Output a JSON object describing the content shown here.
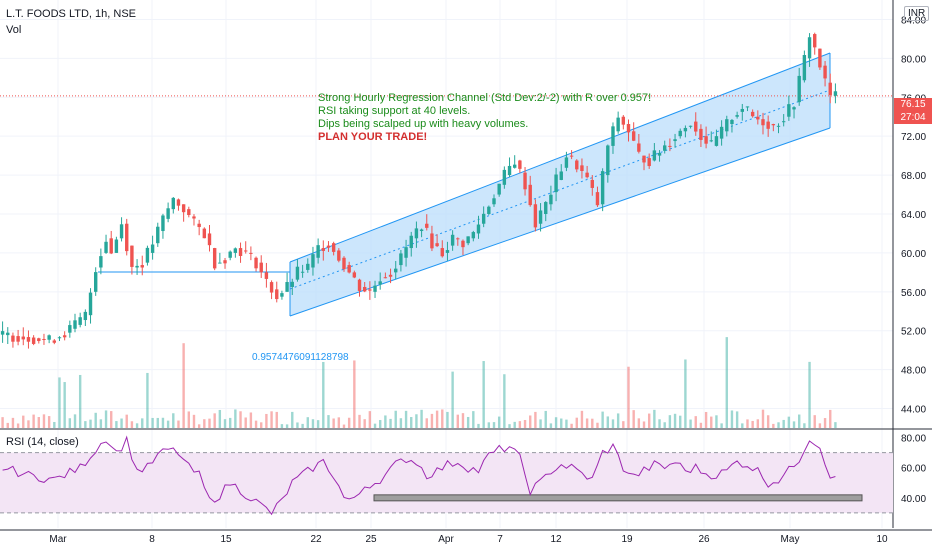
{
  "header": {
    "symbol": "L.T. FOODS LTD, 1h, NSE",
    "volume_label": "Vol",
    "currency": "INR"
  },
  "price_axis": {
    "ticks": [
      "84.00",
      "80.00",
      "76.00",
      "72.00",
      "68.00",
      "64.00",
      "60.00",
      "56.00",
      "52.00",
      "48.00",
      "44.00"
    ]
  },
  "rsi_axis": {
    "ticks": [
      "80.00",
      "60.00",
      "40.00"
    ]
  },
  "time_axis": {
    "ticks": [
      "Mar",
      "8",
      "15",
      "22",
      "25",
      "Apr",
      "7",
      "12",
      "19",
      "26",
      "May",
      "10"
    ]
  },
  "last_price": {
    "value": "76.15",
    "countdown": "27:04"
  },
  "annotation": {
    "line1": "Strong Hourly Regression Channel (Std Dev:2/-2) with R over 0.957!",
    "line2": "RSI taking support at 40 levels.",
    "line3": "Dips being scalped up with heavy volumes.",
    "line4": "PLAN YOUR TRADE!"
  },
  "regression_label": "0.9574476091128798",
  "rsi_panel": {
    "title": "RSI (14, close)"
  },
  "colors": {
    "up": "#26a69a",
    "down": "#ef5350",
    "channel_fill": "#bbdefb",
    "channel_line": "#2196f3",
    "rsi_line": "#9c27b0",
    "rsi_band": "#f3e5f5",
    "price_line": "#ef5350",
    "annotation_green": "#1b8c1b",
    "annotation_red": "#d32f2f"
  },
  "chart_data": {
    "type": "candlestick",
    "price_ylim": [
      42,
      86
    ],
    "rsi_ylim": [
      20,
      85
    ],
    "rsi_levels": [
      70,
      30
    ],
    "rsi_support": 40,
    "price_path": [
      [
        0,
        51.6
      ],
      [
        6,
        51.3
      ],
      [
        10,
        51.0
      ],
      [
        13,
        51.8
      ],
      [
        15,
        52.6
      ],
      [
        17,
        53.6
      ],
      [
        18,
        56.0
      ],
      [
        19,
        58.5
      ],
      [
        21,
        61.5
      ],
      [
        22,
        60.0
      ],
      [
        24,
        63.0
      ],
      [
        26,
        58.5
      ],
      [
        28,
        59.0
      ],
      [
        30,
        61.0
      ],
      [
        32,
        63.5
      ],
      [
        34,
        65.5
      ],
      [
        36,
        64.5
      ],
      [
        38,
        63.0
      ],
      [
        40,
        62.0
      ],
      [
        42,
        59.0
      ],
      [
        44,
        59.5
      ],
      [
        46,
        60.5
      ],
      [
        48,
        60.0
      ],
      [
        50,
        59.0
      ],
      [
        52,
        57.0
      ],
      [
        54,
        55.5
      ],
      [
        56,
        56.5
      ],
      [
        58,
        58.0
      ],
      [
        60,
        58.5
      ],
      [
        62,
        60.5
      ],
      [
        64,
        61.0
      ],
      [
        66,
        59.5
      ],
      [
        68,
        58.0
      ],
      [
        70,
        56.5
      ],
      [
        72,
        56.0
      ],
      [
        74,
        57.5
      ],
      [
        76,
        58.0
      ],
      [
        78,
        59.5
      ],
      [
        80,
        61.5
      ],
      [
        82,
        63.0
      ],
      [
        84,
        61.0
      ],
      [
        86,
        60.0
      ],
      [
        88,
        61.5
      ],
      [
        90,
        61.0
      ],
      [
        92,
        62.0
      ],
      [
        94,
        64.0
      ],
      [
        96,
        66.0
      ],
      [
        98,
        68.0
      ],
      [
        100,
        69.5
      ],
      [
        102,
        67.0
      ],
      [
        104,
        63.0
      ],
      [
        106,
        65.0
      ],
      [
        108,
        67.5
      ],
      [
        110,
        70.0
      ],
      [
        112,
        69.0
      ],
      [
        114,
        67.5
      ],
      [
        116,
        65.0
      ],
      [
        118,
        71.0
      ],
      [
        120,
        74.0
      ],
      [
        122,
        72.5
      ],
      [
        124,
        70.0
      ],
      [
        126,
        69.5
      ],
      [
        128,
        70.5
      ],
      [
        130,
        71.5
      ],
      [
        132,
        72.5
      ],
      [
        134,
        73.5
      ],
      [
        136,
        72.0
      ],
      [
        138,
        71.0
      ],
      [
        140,
        72.5
      ],
      [
        142,
        74.0
      ],
      [
        144,
        75.0
      ],
      [
        146,
        74.0
      ],
      [
        148,
        73.5
      ],
      [
        150,
        73.0
      ],
      [
        152,
        74.0
      ],
      [
        154,
        75.5
      ],
      [
        156,
        80.0
      ],
      [
        157,
        82.5
      ],
      [
        158,
        81.0
      ],
      [
        160,
        77.5
      ],
      [
        161,
        76.15
      ]
    ],
    "rsi_path": [
      [
        0,
        60
      ],
      [
        5,
        55
      ],
      [
        10,
        52
      ],
      [
        15,
        60
      ],
      [
        18,
        72
      ],
      [
        20,
        80
      ],
      [
        22,
        70
      ],
      [
        24,
        78
      ],
      [
        26,
        58
      ],
      [
        28,
        60
      ],
      [
        30,
        68
      ],
      [
        32,
        72
      ],
      [
        34,
        70
      ],
      [
        36,
        60
      ],
      [
        38,
        55
      ],
      [
        40,
        38
      ],
      [
        42,
        42
      ],
      [
        44,
        50
      ],
      [
        46,
        45
      ],
      [
        48,
        40
      ],
      [
        50,
        35
      ],
      [
        52,
        30
      ],
      [
        54,
        38
      ],
      [
        56,
        50
      ],
      [
        58,
        55
      ],
      [
        60,
        60
      ],
      [
        62,
        64
      ],
      [
        64,
        55
      ],
      [
        66,
        40
      ],
      [
        68,
        38
      ],
      [
        70,
        48
      ],
      [
        72,
        50
      ],
      [
        74,
        55
      ],
      [
        76,
        62
      ],
      [
        78,
        66
      ],
      [
        80,
        64
      ],
      [
        82,
        55
      ],
      [
        84,
        58
      ],
      [
        86,
        62
      ],
      [
        88,
        64
      ],
      [
        90,
        60
      ],
      [
        92,
        58
      ],
      [
        94,
        68
      ],
      [
        96,
        72
      ],
      [
        98,
        74
      ],
      [
        100,
        66
      ],
      [
        102,
        45
      ],
      [
        104,
        50
      ],
      [
        106,
        58
      ],
      [
        108,
        62
      ],
      [
        110,
        60
      ],
      [
        112,
        56
      ],
      [
        114,
        52
      ],
      [
        116,
        70
      ],
      [
        118,
        74
      ],
      [
        120,
        60
      ],
      [
        122,
        54
      ],
      [
        124,
        58
      ],
      [
        126,
        62
      ],
      [
        128,
        60
      ],
      [
        130,
        64
      ],
      [
        132,
        58
      ],
      [
        134,
        60
      ],
      [
        136,
        56
      ],
      [
        138,
        55
      ],
      [
        140,
        58
      ],
      [
        142,
        64
      ],
      [
        144,
        62
      ],
      [
        146,
        58
      ],
      [
        148,
        50
      ],
      [
        150,
        52
      ],
      [
        152,
        58
      ],
      [
        154,
        66
      ],
      [
        156,
        80
      ],
      [
        158,
        74
      ],
      [
        160,
        55
      ],
      [
        161,
        52
      ]
    ],
    "volume_ylim": [
      0,
      100
    ],
    "n_bars": 162
  }
}
